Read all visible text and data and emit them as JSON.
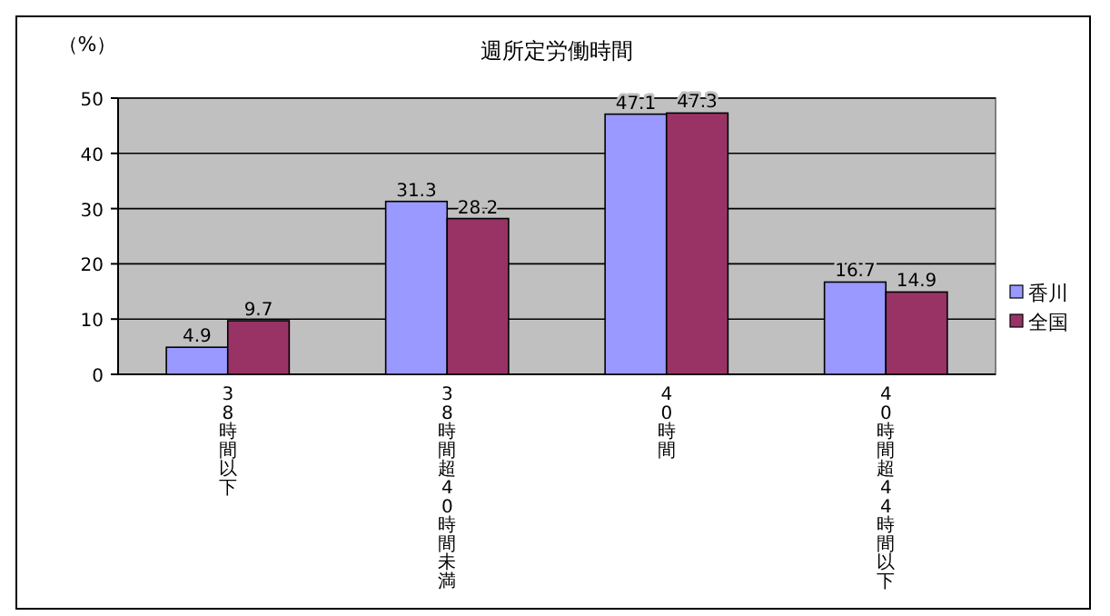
{
  "chart_data": {
    "type": "bar",
    "title": "週所定労働時間",
    "ylabel": "（%）",
    "categories": [
      "38時間以下",
      "38時間超40時間未満",
      "40時間",
      "40時間超44時間以下"
    ],
    "series": [
      {
        "name": "香川",
        "color": "#9999ff",
        "values": [
          4.9,
          31.3,
          47.1,
          16.7
        ]
      },
      {
        "name": "全国",
        "color": "#993366",
        "values": [
          9.7,
          28.2,
          47.3,
          14.9
        ]
      }
    ],
    "ylim": [
      0,
      50
    ],
    "yticks": [
      0,
      10,
      20,
      30,
      40,
      50
    ],
    "grid": "y",
    "legend": "right",
    "data_labels": true
  }
}
